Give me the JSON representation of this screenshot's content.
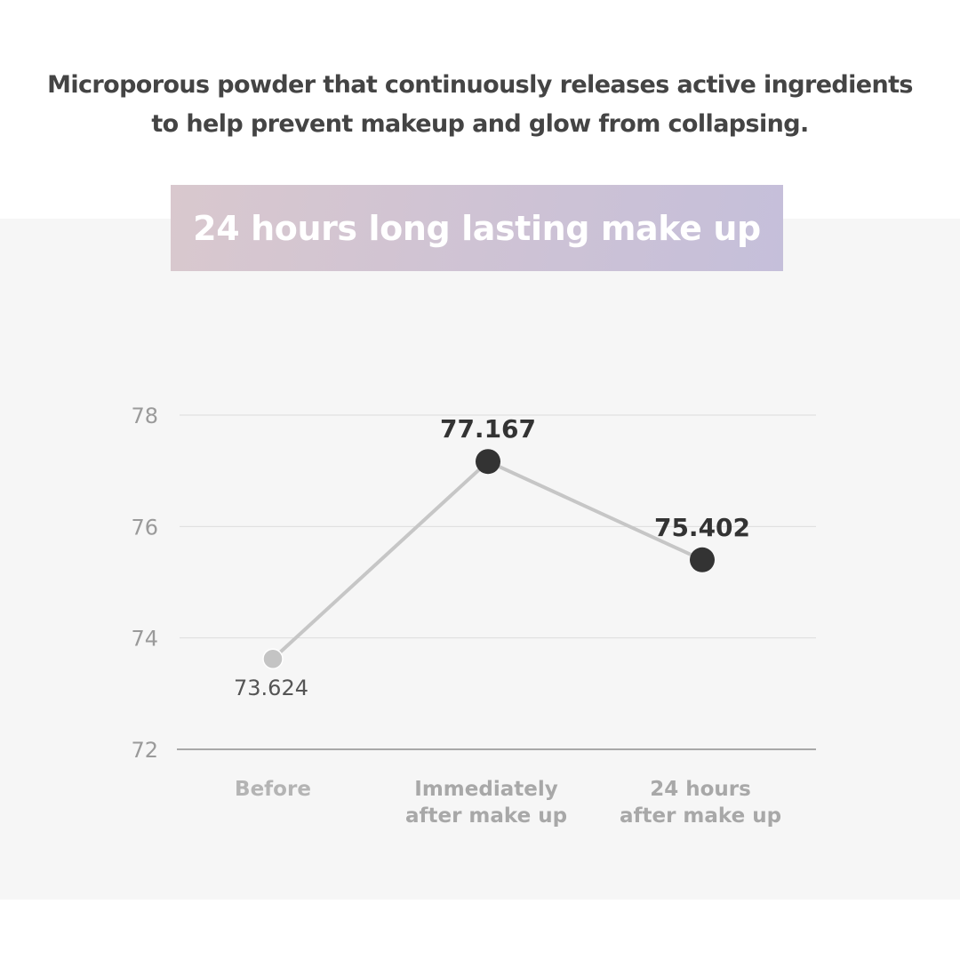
{
  "headline": {
    "line1": "Microporous powder that continuously releases active ingredients",
    "line2": "to help prevent makeup and glow from collapsing."
  },
  "banner": {
    "title": "24 hours long lasting make up"
  },
  "colors": {
    "text_dark": "#444444",
    "marker_dark": "#333333",
    "marker_light": "#c4c4c4",
    "line": "#c6c6c6",
    "grid": "#dcdcdc",
    "axis": "#8e8e8e",
    "tick_text": "#9a9a9a",
    "category_text": "#a8a8a8",
    "panel_bg": "#f6f6f6"
  },
  "chart_data": {
    "type": "line",
    "title": "24 hours long lasting make up",
    "xlabel": "",
    "ylabel": "",
    "ylim": [
      72,
      78
    ],
    "y_ticks": [
      "72",
      "74",
      "76",
      "78"
    ],
    "grid": true,
    "categories": [
      [
        "Before"
      ],
      [
        "Immediately",
        "after make up"
      ],
      [
        "24 hours",
        "after make up"
      ]
    ],
    "values": [
      73.624,
      77.167,
      75.402
    ],
    "value_labels": [
      "73.624",
      "77.167",
      "75.402"
    ]
  }
}
